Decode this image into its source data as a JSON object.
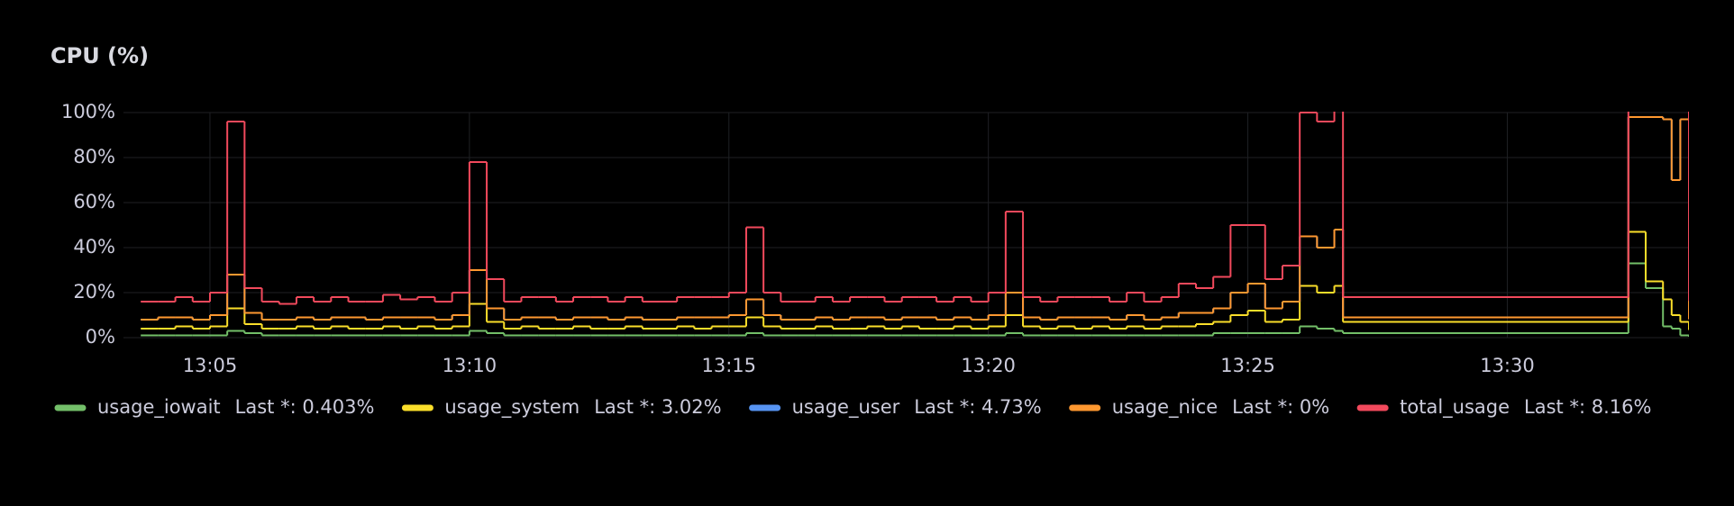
{
  "chart_data": {
    "type": "stacked-step-line",
    "title": "CPU (%)",
    "xlim": [
      "13:03:20",
      "13:33:30"
    ],
    "xticks": [
      "13:05",
      "13:10",
      "13:15",
      "13:20",
      "13:25",
      "13:30"
    ],
    "ylim": [
      0,
      100
    ],
    "yticks": [
      {
        "value": 0,
        "label": "0%"
      },
      {
        "value": 20,
        "label": "20%"
      },
      {
        "value": 40,
        "label": "40%"
      },
      {
        "value": 60,
        "label": "60%"
      },
      {
        "value": 80,
        "label": "80%"
      },
      {
        "value": 100,
        "label": "100%"
      }
    ],
    "grid": true,
    "stacked": true,
    "x": [
      "13:03:40",
      "13:04:00",
      "13:04:20",
      "13:04:40",
      "13:05:00",
      "13:05:20",
      "13:05:40",
      "13:06:00",
      "13:06:20",
      "13:06:40",
      "13:07:00",
      "13:07:20",
      "13:07:40",
      "13:08:00",
      "13:08:20",
      "13:08:40",
      "13:09:00",
      "13:09:20",
      "13:09:40",
      "13:10:00",
      "13:10:20",
      "13:10:40",
      "13:11:00",
      "13:11:20",
      "13:11:40",
      "13:12:00",
      "13:12:20",
      "13:12:40",
      "13:13:00",
      "13:13:20",
      "13:13:40",
      "13:14:00",
      "13:14:20",
      "13:14:40",
      "13:15:00",
      "13:15:20",
      "13:15:40",
      "13:16:00",
      "13:16:20",
      "13:16:40",
      "13:17:00",
      "13:17:20",
      "13:17:40",
      "13:18:00",
      "13:18:20",
      "13:18:40",
      "13:19:00",
      "13:19:20",
      "13:19:40",
      "13:20:00",
      "13:20:20",
      "13:20:40",
      "13:21:00",
      "13:21:20",
      "13:21:40",
      "13:22:00",
      "13:22:20",
      "13:22:40",
      "13:23:00",
      "13:23:20",
      "13:23:40",
      "13:24:00",
      "13:24:20",
      "13:24:40",
      "13:25:00",
      "13:25:20",
      "13:25:40",
      "13:26:00",
      "13:26:20",
      "13:26:40",
      "13:26:50",
      "13:32:20",
      "13:32:40",
      "13:33:00",
      "13:33:10",
      "13:33:20",
      "13:33:30"
    ],
    "legend_position": "bottom",
    "series": [
      {
        "name": "usage_iowait",
        "color": "#73bf69",
        "legend_value": "Last *: 0.403%",
        "values": [
          1,
          1,
          1,
          1,
          1,
          3,
          2,
          1,
          1,
          1,
          1,
          1,
          1,
          1,
          1,
          1,
          1,
          1,
          1,
          3,
          2,
          1,
          1,
          1,
          1,
          1,
          1,
          1,
          1,
          1,
          1,
          1,
          1,
          1,
          1,
          2,
          1,
          1,
          1,
          1,
          1,
          1,
          1,
          1,
          1,
          1,
          1,
          1,
          1,
          1,
          2,
          1,
          1,
          1,
          1,
          1,
          1,
          1,
          1,
          1,
          1,
          1,
          2,
          2,
          2,
          2,
          2,
          5,
          4,
          3,
          2,
          33,
          22,
          5,
          4,
          1,
          0.403
        ]
      },
      {
        "name": "usage_system",
        "color": "#fade2a",
        "legend_value": "Last *: 3.02%",
        "values": [
          3,
          3,
          4,
          3,
          4,
          10,
          4,
          3,
          3,
          4,
          3,
          4,
          3,
          3,
          4,
          3,
          4,
          3,
          4,
          12,
          5,
          3,
          4,
          3,
          3,
          4,
          3,
          3,
          4,
          3,
          3,
          4,
          3,
          4,
          4,
          7,
          4,
          3,
          3,
          4,
          3,
          3,
          4,
          3,
          4,
          3,
          3,
          4,
          3,
          4,
          8,
          4,
          3,
          4,
          3,
          4,
          3,
          4,
          3,
          4,
          4,
          5,
          5,
          8,
          10,
          5,
          6,
          18,
          16,
          20,
          5,
          14,
          3,
          12,
          6,
          6,
          3.02
        ]
      },
      {
        "name": "usage_user",
        "color": "#5794f2",
        "legend_value": "Last *: 4.73%",
        "values": [
          4,
          5,
          4,
          4,
          5,
          15,
          5,
          4,
          4,
          4,
          4,
          4,
          5,
          4,
          4,
          5,
          4,
          4,
          5,
          15,
          6,
          4,
          4,
          5,
          4,
          4,
          5,
          4,
          4,
          4,
          4,
          4,
          5,
          4,
          5,
          8,
          5,
          4,
          4,
          4,
          4,
          5,
          4,
          4,
          4,
          5,
          4,
          4,
          4,
          5,
          10,
          4,
          4,
          4,
          5,
          4,
          4,
          5,
          4,
          4,
          6,
          5,
          6,
          10,
          12,
          6,
          8,
          22,
          20,
          25,
          2,
          51,
          73,
          80,
          60,
          90,
          4.73
        ]
      },
      {
        "name": "usage_nice",
        "color": "#ff9830",
        "legend_value": "Last *: 0%",
        "values": [
          0,
          0,
          0,
          0,
          0,
          0,
          0,
          0,
          0,
          0,
          0,
          0,
          0,
          0,
          0,
          0,
          0,
          0,
          0,
          0,
          0,
          0,
          0,
          0,
          0,
          0,
          0,
          0,
          0,
          0,
          0,
          0,
          0,
          0,
          0,
          0,
          0,
          0,
          0,
          0,
          0,
          0,
          0,
          0,
          0,
          0,
          0,
          0,
          0,
          0,
          0,
          0,
          0,
          0,
          0,
          0,
          0,
          0,
          0,
          0,
          0,
          0,
          0,
          0,
          0,
          0,
          0,
          0,
          0,
          0,
          0,
          0,
          0,
          0,
          0,
          0,
          0
        ]
      },
      {
        "name": "total_usage",
        "color": "#f2495c",
        "legend_value": "Last *: 8.16%",
        "values": [
          8,
          7,
          9,
          8,
          10,
          68,
          11,
          8,
          7,
          9,
          8,
          9,
          7,
          8,
          10,
          8,
          9,
          8,
          10,
          48,
          13,
          8,
          9,
          9,
          8,
          9,
          9,
          8,
          9,
          8,
          8,
          9,
          9,
          9,
          10,
          32,
          10,
          8,
          8,
          9,
          8,
          9,
          9,
          8,
          9,
          9,
          8,
          9,
          8,
          10,
          36,
          9,
          8,
          9,
          9,
          9,
          8,
          10,
          8,
          9,
          13,
          11,
          14,
          30,
          26,
          13,
          16,
          55,
          56,
          60,
          9,
          8,
          10,
          10,
          35,
          8,
          8.16
        ]
      }
    ]
  }
}
